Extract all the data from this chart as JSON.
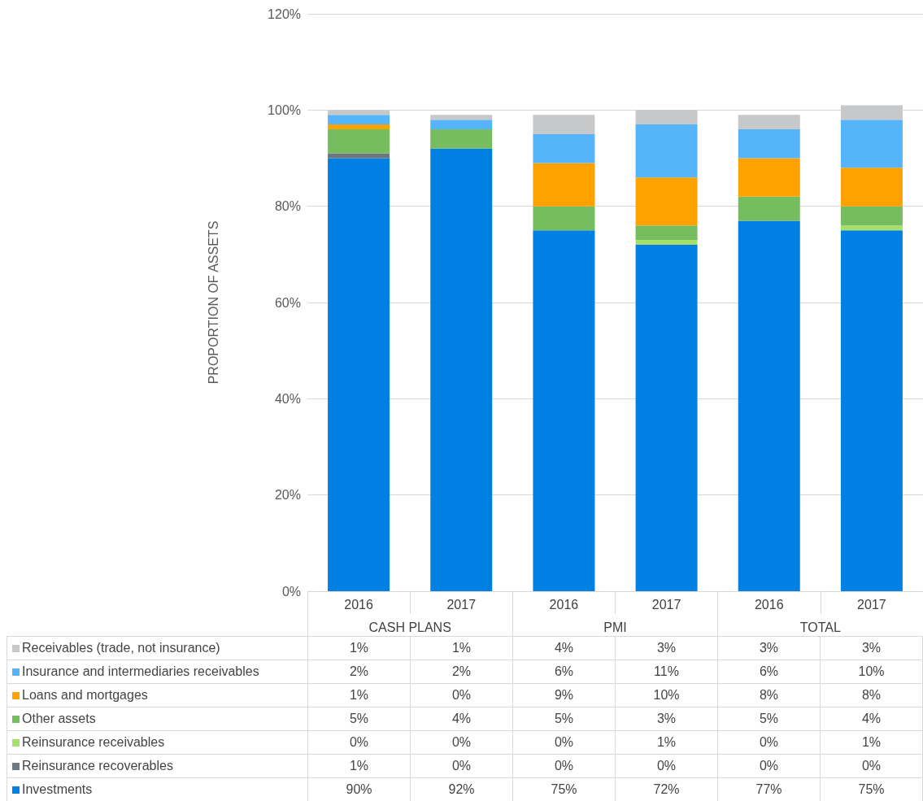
{
  "chart_data": {
    "type": "bar",
    "ylabel": "PROPORTION OF ASSETS",
    "categories": [
      "2016",
      "2017",
      "2016",
      "2017",
      "2016",
      "2017"
    ],
    "annotations": [
      "CASH PLANS",
      "PMI",
      "TOTAL"
    ],
    "stacked": true,
    "ylim": [
      0,
      120
    ],
    "yticks": [
      {
        "value": 0,
        "label": "0%"
      },
      {
        "value": 20,
        "label": "20%"
      },
      {
        "value": 40,
        "label": "40%"
      },
      {
        "value": 60,
        "label": "60%"
      },
      {
        "value": 80,
        "label": "80%"
      },
      {
        "value": 100,
        "label": "100%"
      },
      {
        "value": 120,
        "label": "120%"
      }
    ],
    "grid": "y",
    "legend": "bottom",
    "series": [
      {
        "name": "Investments",
        "color": "#0080e3",
        "values": [
          90,
          92,
          75,
          72,
          77,
          75
        ],
        "value_labels": [
          "90%",
          "92%",
          "75%",
          "72%",
          "77%",
          "75%"
        ]
      },
      {
        "name": "Reinsurance recoverables",
        "color": "#6d7780",
        "values": [
          1,
          0,
          0,
          0,
          0,
          0
        ],
        "value_labels": [
          "1%",
          "0%",
          "0%",
          "0%",
          "0%",
          "0%"
        ]
      },
      {
        "name": "Reinsurance receivables",
        "color": "#a5e06b",
        "values": [
          0,
          0,
          0,
          1,
          0,
          1
        ],
        "value_labels": [
          "0%",
          "0%",
          "0%",
          "1%",
          "0%",
          "1%"
        ]
      },
      {
        "name": "Other assets",
        "color": "#75bd5e",
        "values": [
          5,
          4,
          5,
          3,
          5,
          4
        ],
        "value_labels": [
          "5%",
          "4%",
          "5%",
          "3%",
          "5%",
          "4%"
        ]
      },
      {
        "name": "Loans and mortgages",
        "color": "#ffa200",
        "values": [
          1,
          0,
          9,
          10,
          8,
          8
        ],
        "value_labels": [
          "1%",
          "0%",
          "9%",
          "10%",
          "8%",
          "8%"
        ]
      },
      {
        "name": "Insurance and intermediaries receivables",
        "color": "#56b4fb",
        "values": [
          2,
          2,
          6,
          11,
          6,
          10
        ],
        "value_labels": [
          "2%",
          "2%",
          "6%",
          "11%",
          "6%",
          "10%"
        ]
      },
      {
        "name": "Receivables (trade, not insurance)",
        "color": "#c6c8ca",
        "values": [
          1,
          1,
          4,
          3,
          3,
          3
        ],
        "value_labels": [
          "1%",
          "1%",
          "4%",
          "3%",
          "3%",
          "3%"
        ]
      }
    ]
  }
}
